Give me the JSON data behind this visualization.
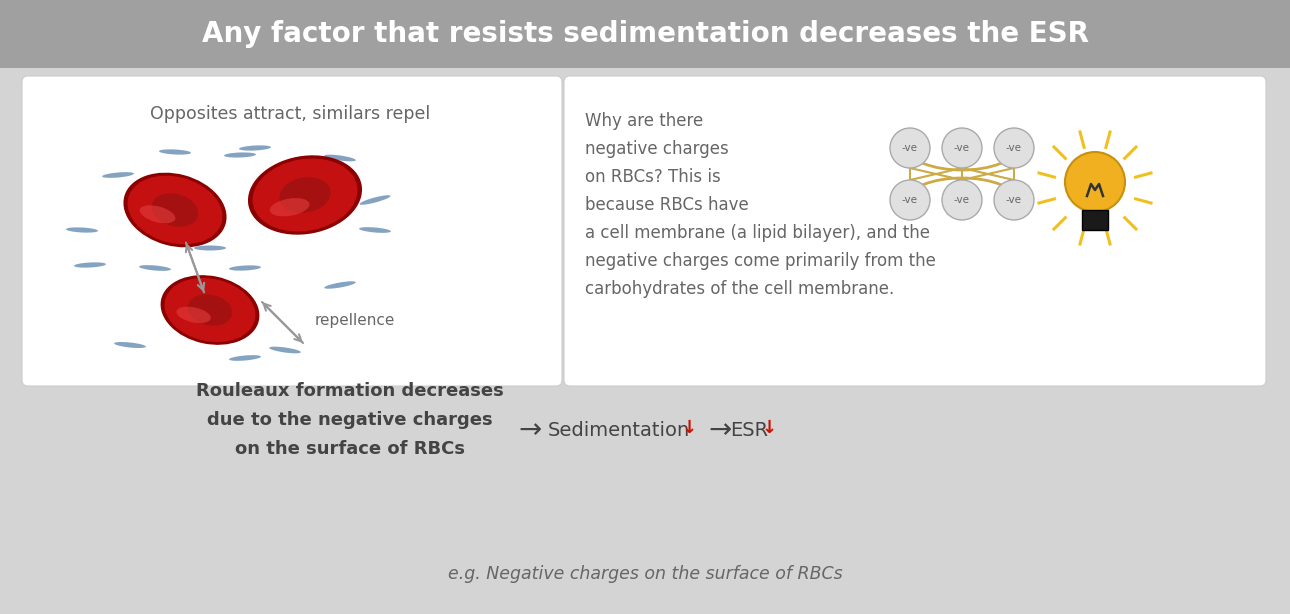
{
  "title": "Any factor that resists sedimentation decreases the ESR",
  "title_bg": "#a0a0a0",
  "title_color": "#ffffff",
  "main_bg": "#d4d4d4",
  "left_label": "Opposites attract, similars repel",
  "repellence_label": "repellence",
  "right_text_line1": "Why are there",
  "right_text_line2": "negative charges",
  "right_text_line3": "on RBCs? This is",
  "right_text_line4": "because RBCs have",
  "right_text_line5": "a cell membrane (a lipid bilayer), and the",
  "right_text_line6": "negative charges come primarily from the",
  "right_text_line7": "carbohydrates of the cell membrane.",
  "bottom_bold_text": "Rouleaux formation decreases\ndue to the negative charges\non the surface of RBCs",
  "bottom_sed_text": "Sedimentation",
  "bottom_esr_text": "ESR",
  "bottom_down_arrow": "↓",
  "bottom_arrow": "→",
  "footer_text": "e.g. Negative charges on the surface of RBCs",
  "text_color": "#666666",
  "dark_text": "#444444",
  "red_color": "#cc1100",
  "dash_color": "#7799bb",
  "arrow_color": "#999999",
  "charge_line_color": "#ccaa44",
  "bulb_color": "#f0b020",
  "bulb_base": "#1a1a1a"
}
